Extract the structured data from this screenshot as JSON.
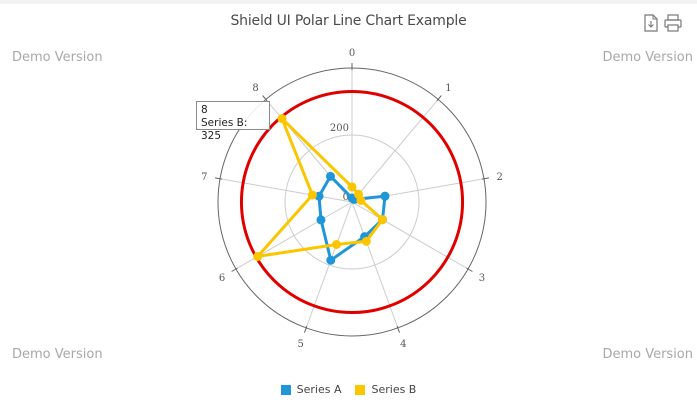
{
  "header": {
    "title": "Shield UI Polar Line Chart Example",
    "watermark": "Demo Version",
    "export_icon": "file-download-icon",
    "print_icon": "printer-icon"
  },
  "tooltip": {
    "category": "8",
    "text": "Series B: 325"
  },
  "legend": {
    "items": [
      {
        "label": "Series A",
        "color": "#1f96d8"
      },
      {
        "label": "Series B",
        "color": "#fbc500"
      }
    ]
  },
  "colors": {
    "series_a": "#1f96d8",
    "series_b": "#fbc500",
    "plot_line": "#e10000",
    "grid": "#cccccc",
    "outer_ring": "#666666"
  },
  "chart_data": {
    "type": "line",
    "subtype": "polar",
    "title": "Shield UI Polar Line Chart Example",
    "categories": [
      "0",
      "1",
      "2",
      "3",
      "4",
      "5",
      "6",
      "7",
      "8"
    ],
    "series": [
      {
        "name": "Series A",
        "values": [
          12,
          10,
          100,
          105,
          110,
          185,
          107,
          100,
          100
        ]
      },
      {
        "name": "Series B",
        "values": [
          45,
          30,
          27,
          105,
          125,
          135,
          325,
          120,
          325
        ]
      }
    ],
    "value_axis": {
      "tick_labels": [
        "0",
        "200"
      ],
      "range": [
        0,
        400
      ]
    },
    "plot_line": {
      "value": 330,
      "color": "#e10000"
    },
    "legend_position": "bottom",
    "grid": true,
    "tooltip": {
      "category": "8",
      "series": "Series B",
      "value": 325
    }
  }
}
